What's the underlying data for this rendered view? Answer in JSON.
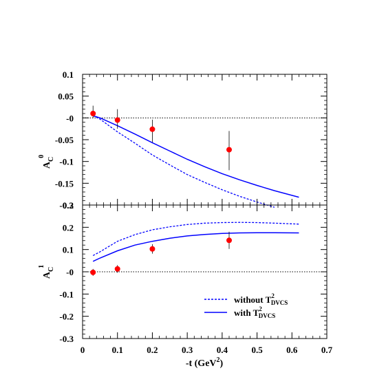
{
  "chart_data": [
    {
      "type": "line",
      "panel": "top",
      "ylabel": "A_C^0",
      "xlim": [
        0,
        0.7
      ],
      "ylim": [
        -0.2,
        0.1
      ],
      "xticks": [
        "0",
        "0.1",
        "0.2",
        "0.3",
        "0.4",
        "0.5",
        "0.6",
        "0.7"
      ],
      "yticks": [
        "0.1",
        "0.05",
        "-0",
        "-0.05",
        "-0.1",
        "-0.15",
        "-0.2"
      ],
      "series": [
        {
          "style": "dashed",
          "color": "#0000ff",
          "x": [
            0.03,
            0.05,
            0.1,
            0.15,
            0.2,
            0.25,
            0.3,
            0.35,
            0.4,
            0.45,
            0.5,
            0.55
          ],
          "y": [
            0.005,
            -0.003,
            -0.032,
            -0.058,
            -0.085,
            -0.108,
            -0.13,
            -0.148,
            -0.165,
            -0.18,
            -0.193,
            -0.205
          ]
        },
        {
          "style": "solid",
          "color": "#0000ff",
          "x": [
            0.03,
            0.05,
            0.1,
            0.15,
            0.2,
            0.25,
            0.3,
            0.35,
            0.4,
            0.45,
            0.5,
            0.55,
            0.62
          ],
          "y": [
            0.005,
            0.0,
            -0.018,
            -0.037,
            -0.057,
            -0.076,
            -0.095,
            -0.112,
            -0.128,
            -0.142,
            -0.155,
            -0.167,
            -0.182
          ]
        }
      ],
      "points": [
        {
          "x": 0.03,
          "y": 0.01,
          "err_hi": 0.018,
          "err_lo": 0.01
        },
        {
          "x": 0.1,
          "y": -0.005,
          "err_hi": 0.025,
          "err_lo": 0.02
        },
        {
          "x": 0.2,
          "y": -0.026,
          "err_hi": 0.022,
          "err_lo": 0.03
        },
        {
          "x": 0.42,
          "y": -0.073,
          "err_hi": 0.043,
          "err_lo": 0.047
        }
      ],
      "reference_line": 0
    },
    {
      "type": "line",
      "panel": "bottom",
      "ylabel": "A_C^1",
      "xlabel": "-t (GeV^2)",
      "xlim": [
        0,
        0.7
      ],
      "ylim": [
        -0.35,
        0.35
      ],
      "xticks": [
        "0",
        "0.1",
        "0.2",
        "0.3",
        "0.4",
        "0.5",
        "0.6",
        "0.7"
      ],
      "yticks": [
        "0.3",
        "0.2",
        "0.1",
        "-0",
        "-0.1",
        "-0.2",
        "-0.3"
      ],
      "series": [
        {
          "name": "without T_DVCS^2",
          "style": "dashed",
          "color": "#0000ff",
          "x": [
            0.03,
            0.05,
            0.1,
            0.15,
            0.2,
            0.25,
            0.3,
            0.35,
            0.4,
            0.45,
            0.5,
            0.55,
            0.62
          ],
          "y": [
            0.085,
            0.105,
            0.16,
            0.195,
            0.22,
            0.236,
            0.248,
            0.255,
            0.258,
            0.259,
            0.258,
            0.255,
            0.25
          ]
        },
        {
          "name": "with T_DVCS^2",
          "style": "solid",
          "color": "#0000ff",
          "x": [
            0.03,
            0.05,
            0.1,
            0.15,
            0.2,
            0.25,
            0.3,
            0.35,
            0.4,
            0.45,
            0.5,
            0.55,
            0.62
          ],
          "y": [
            0.055,
            0.072,
            0.11,
            0.14,
            0.16,
            0.176,
            0.188,
            0.196,
            0.201,
            0.204,
            0.205,
            0.205,
            0.204
          ]
        }
      ],
      "points": [
        {
          "x": 0.03,
          "y": -0.003,
          "err_hi": 0.018,
          "err_lo": 0.018
        },
        {
          "x": 0.1,
          "y": 0.015,
          "err_hi": 0.02,
          "err_lo": 0.02
        },
        {
          "x": 0.2,
          "y": 0.12,
          "err_hi": 0.025,
          "err_lo": 0.025
        },
        {
          "x": 0.42,
          "y": 0.165,
          "err_hi": 0.045,
          "err_lo": 0.045
        }
      ],
      "reference_line": 0
    }
  ],
  "legend": {
    "placement": "bottom-right of lower panel",
    "entries": [
      {
        "prefix": "without T",
        "sup": "2",
        "sub": "DVCS"
      },
      {
        "prefix": "with T",
        "sup": "2",
        "sub": "DVCS"
      }
    ]
  },
  "labels": {
    "top_ylabel_main": "A",
    "top_ylabel_sub": "C",
    "top_ylabel_sup": "0",
    "bottom_ylabel_main": "A",
    "bottom_ylabel_sub": "C",
    "bottom_ylabel_sup": "1",
    "xlabel_prefix": "-t (GeV",
    "xlabel_sup": "2",
    "xlabel_suffix": ")"
  },
  "colors": {
    "curve": "#0000ff",
    "points": "#ff0000",
    "axes": "#000000"
  }
}
